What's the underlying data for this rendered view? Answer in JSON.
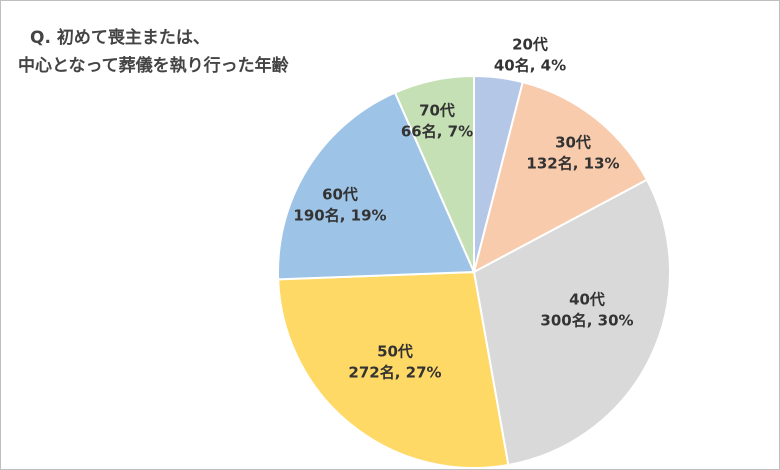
{
  "chart_data": {
    "type": "pie",
    "title": [
      "Q. 初めて喪主または、",
      "中心となって葬儀を執り行った年齢"
    ],
    "categories": [
      "20代",
      "30代",
      "40代",
      "50代",
      "60代",
      "70代"
    ],
    "values": [
      40,
      132,
      300,
      272,
      190,
      66
    ],
    "value_labels": [
      "40名, 4%",
      "132名, 13%",
      "300名, 30%",
      "272名, 27%",
      "190名, 19%",
      "66名, 7%"
    ],
    "colors": [
      "#b4c7e7",
      "#f8cbad",
      "#d9d9d9",
      "#ffd966",
      "#9dc3e6",
      "#c5e0b4"
    ]
  }
}
